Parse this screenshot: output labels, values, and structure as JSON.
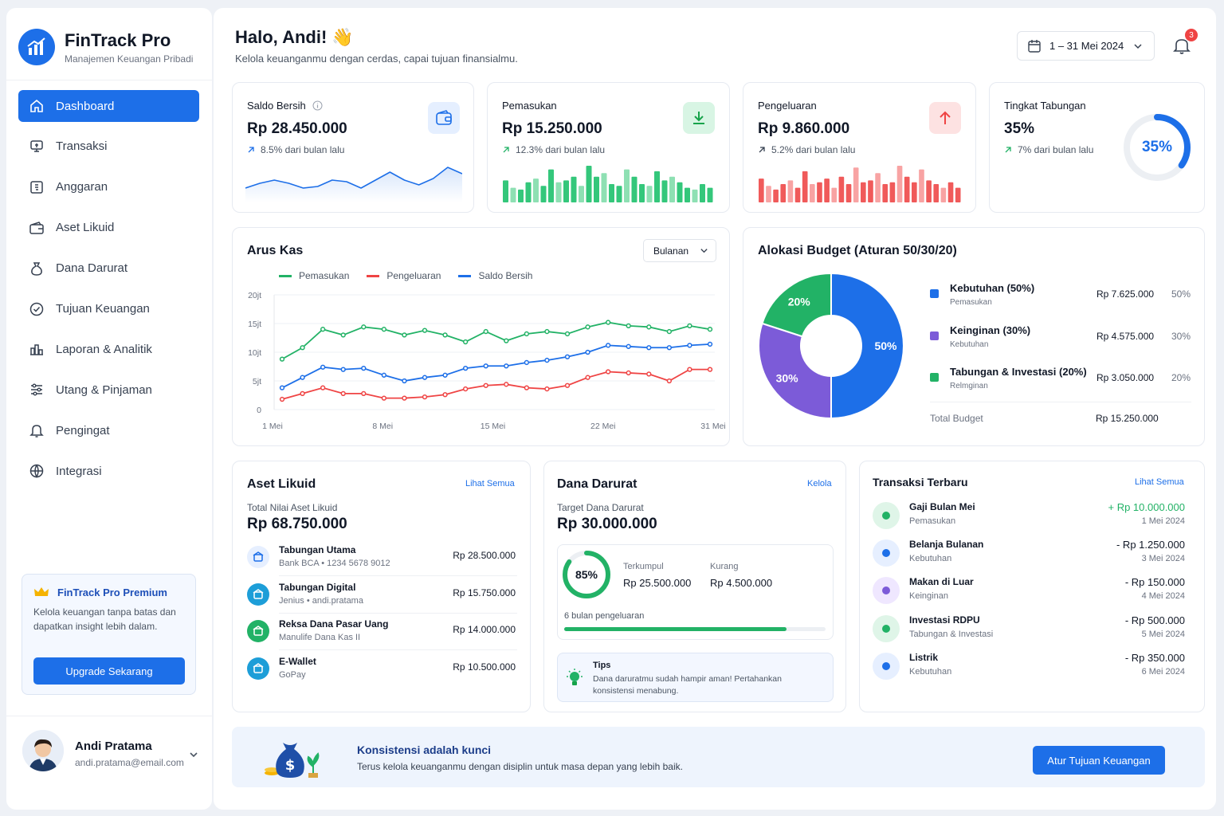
{
  "app": {
    "name": "FinTrack Pro",
    "tagline": "Manajemen Keuangan Pribadi"
  },
  "nav": [
    {
      "label": "Dashboard",
      "icon": "home-icon",
      "active": true
    },
    {
      "label": "Transaksi",
      "icon": "receipt-icon"
    },
    {
      "label": "Anggaran",
      "icon": "budget-icon"
    },
    {
      "label": "Aset Likuid",
      "icon": "wallet-icon"
    },
    {
      "label": "Dana Darurat",
      "icon": "moneybag-icon"
    },
    {
      "label": "Tujuan Keuangan",
      "icon": "target-icon"
    },
    {
      "label": "Laporan & Analitik",
      "icon": "chart-icon"
    },
    {
      "label": "Utang & Pinjaman",
      "icon": "sliders-icon"
    },
    {
      "label": "Pengingat",
      "icon": "bell-icon"
    },
    {
      "label": "Integrasi",
      "icon": "globe-icon"
    }
  ],
  "premium": {
    "title": "FinTrack Pro Premium",
    "text": "Kelola keuangan tanpa batas dan dapatkan insight lebih dalam.",
    "button": "Upgrade Sekarang"
  },
  "user": {
    "name": "Andi Pratama",
    "email": "andi.pratama@email.com"
  },
  "header": {
    "greeting": "Halo, Andi! 👋",
    "subtitle": "Kelola keuanganmu dengan cerdas, capai tujuan finansialmu.",
    "date_range": "1 – 31 Mei 2024",
    "notif_count": "3"
  },
  "stats": {
    "saldo": {
      "label": "Saldo Bersih",
      "value": "Rp 28.450.000",
      "change": "8.5% dari bulan lalu"
    },
    "pemasukan": {
      "label": "Pemasukan",
      "value": "Rp 15.250.000",
      "change": "12.3% dari bulan lalu"
    },
    "pengeluaran": {
      "label": "Pengeluaran",
      "value": "Rp 9.860.000",
      "change": "5.2% dari bulan lalu"
    },
    "tabungan": {
      "label": "Tingkat Tabungan",
      "value": "35%",
      "change": "7% dari bulan lalu",
      "ring_label": "35%",
      "ring_fraction": 0.35
    }
  },
  "colors": {
    "primary": "#1d6fe8",
    "green": "#22b266",
    "red": "#ef4444",
    "purple": "#7c5bd8"
  },
  "arus_kas": {
    "title": "Arus Kas",
    "period": "Bulanan"
  },
  "chart_data": {
    "type": "line",
    "title": "",
    "series": [
      {
        "name": "Pemasukan",
        "color": "#22b266",
        "values": [
          8.8,
          10.8,
          14,
          13,
          14.4,
          14,
          13,
          13.8,
          13,
          11.8,
          13.6,
          12,
          13.2,
          13.6,
          13.2,
          14.4,
          15.2,
          14.6,
          14.4,
          13.6,
          14.6,
          14
        ]
      },
      {
        "name": "Pengeluaran",
        "color": "#ef4444",
        "values": [
          1.8,
          2.8,
          3.8,
          2.8,
          2.8,
          2,
          2,
          2.2,
          2.6,
          3.6,
          4.2,
          4.4,
          3.8,
          3.6,
          4.2,
          5.6,
          6.6,
          6.4,
          6.2,
          5,
          7,
          7
        ]
      },
      {
        "name": "Saldo Bersih",
        "color": "#1d6fe8",
        "values": [
          3.8,
          5.6,
          7.4,
          7,
          7.2,
          6,
          5,
          5.6,
          6,
          7.2,
          7.6,
          7.6,
          8.2,
          8.6,
          9.2,
          10,
          11.2,
          11,
          10.8,
          10.8,
          11.2,
          11.4
        ]
      }
    ],
    "x_ticks": [
      "1 Mei",
      "8 Mei",
      "15 Mei",
      "22 Mei",
      "31 Mei"
    ],
    "y_ticks": [
      "20jt",
      "15jt",
      "10jt",
      "5jt",
      "0"
    ],
    "ylim": [
      0,
      20
    ],
    "grid": true,
    "legend": "top-left"
  },
  "spark": {
    "saldo": [
      0.3,
      0.45,
      0.55,
      0.45,
      0.3,
      0.35,
      0.55,
      0.5,
      0.3,
      0.55,
      0.8,
      0.55,
      0.4,
      0.6,
      0.95,
      0.75
    ],
    "pemasukan": [
      0.6,
      0.4,
      0.35,
      0.55,
      0.65,
      0.45,
      0.9,
      0.55,
      0.6,
      0.7,
      0.45,
      1.0,
      0.7,
      0.8,
      0.5,
      0.45,
      0.9,
      0.7,
      0.5,
      0.45,
      0.85,
      0.6,
      0.7,
      0.55,
      0.4,
      0.35,
      0.5,
      0.4
    ],
    "pengeluaran": [
      0.65,
      0.45,
      0.35,
      0.5,
      0.6,
      0.4,
      0.85,
      0.5,
      0.55,
      0.65,
      0.4,
      0.7,
      0.5,
      0.95,
      0.55,
      0.6,
      0.8,
      0.5,
      0.55,
      1.0,
      0.7,
      0.55,
      0.9,
      0.6,
      0.5,
      0.4,
      0.55,
      0.4
    ]
  },
  "budget": {
    "title": "Alokasi Budget (Aturan 50/30/20)",
    "slices": [
      {
        "label": "50%",
        "value": 50,
        "color": "#1d6fe8"
      },
      {
        "label": "30%",
        "value": 30,
        "color": "#7c5bd8"
      },
      {
        "label": "20%",
        "value": 20,
        "color": "#22b266"
      }
    ],
    "items": [
      {
        "name": "Kebutuhan (50%)",
        "sub": "Pemasukan",
        "amount": "Rp 7.625.000",
        "pct": "50%",
        "color": "#1d6fe8"
      },
      {
        "name": "Keinginan (30%)",
        "sub": "Kebutuhan",
        "amount": "Rp 4.575.000",
        "pct": "30%",
        "color": "#7c5bd8"
      },
      {
        "name": "Tabungan & Investasi (20%)",
        "sub": "Relmginan",
        "amount": "Rp 3.050.000",
        "pct": "20%",
        "color": "#22b266"
      }
    ],
    "total_label": "Total Budget",
    "total_value": "Rp 15.250.000"
  },
  "aset": {
    "title": "Aset Likuid",
    "link": "Lihat Semua",
    "total_label": "Total Nilai Aset Likuid",
    "total": "Rp 68.750.000",
    "items": [
      {
        "name": "Tabungan Utama",
        "sub": "Bank BCA • 1234 5678 9012",
        "amount": "Rp 28.500.000",
        "icon": "bank-icon"
      },
      {
        "name": "Tabungan Digital",
        "sub": "Jenius • andi.pratama",
        "amount": "Rp 15.750.000",
        "icon": "digital-bank-icon"
      },
      {
        "name": "Reksa Dana Pasar Uang",
        "sub": "Manulife Dana Kas II",
        "amount": "Rp 14.000.000",
        "icon": "fund-icon"
      },
      {
        "name": "E-Wallet",
        "sub": "GoPay",
        "amount": "Rp 10.500.000",
        "icon": "ewallet-icon"
      }
    ]
  },
  "darurat": {
    "title": "Dana Darurat",
    "link": "Kelola",
    "target_label": "Target Dana Darurat",
    "target": "Rp 30.000.000",
    "ring_label": "85%",
    "progress": 0.85,
    "collected_label": "Terkumpul",
    "collected": "Rp 25.500.000",
    "remaining_label": "Kurang",
    "remaining": "Rp 4.500.000",
    "months": "6 bulan pengeluaran",
    "tips_title": "Tips",
    "tips_text": "Dana daruratmu sudah hampir aman! Pertahankan konsistensi menabung."
  },
  "transaksi": {
    "title": "Transaksi Terbaru",
    "link": "Lihat Semua",
    "items": [
      {
        "name": "Gaji Bulan Mei",
        "sub": "Pemasukan",
        "amount": "+ Rp 10.000.000",
        "date": "1 Mei 2024",
        "positive": true,
        "icon": "salary-icon"
      },
      {
        "name": "Belanja Bulanan",
        "sub": "Kebutuhan",
        "amount": "- Rp 1.250.000",
        "date": "3 Mei 2024",
        "icon": "cart-icon"
      },
      {
        "name": "Makan di Luar",
        "sub": "Keinginan",
        "amount": "- Rp 150.000",
        "date": "4 Mei 2024",
        "icon": "coffee-icon"
      },
      {
        "name": "Investasi RDPU",
        "sub": "Tabungan & Investasi",
        "amount": "- Rp 500.000",
        "date": "5 Mei 2024",
        "icon": "investment-icon"
      },
      {
        "name": "Listrik",
        "sub": "Kebutuhan",
        "amount": "- Rp 350.000",
        "date": "6 Mei 2024",
        "icon": "lightning-icon"
      }
    ]
  },
  "banner": {
    "title": "Konsistensi adalah kunci",
    "text": "Terus kelola keuanganmu dengan disiplin untuk masa depan yang lebih baik.",
    "button": "Atur Tujuan Keuangan"
  }
}
